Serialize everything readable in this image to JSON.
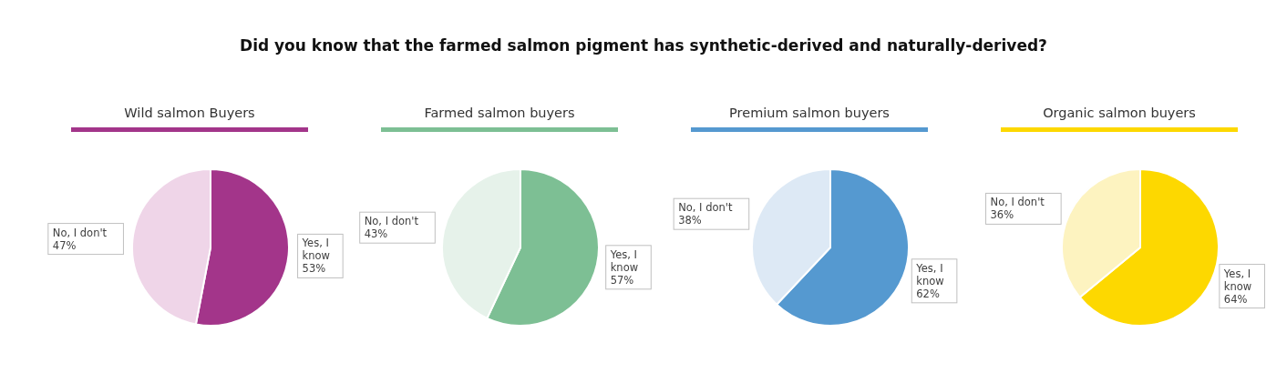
{
  "chart_data": [
    {
      "type": "pie",
      "title": "Did you know that the farmed salmon pigment has synthetic-derived and naturally-derived?",
      "subtitle": "Wild salmon Buyers",
      "categories": [
        "Yes, I know",
        "No, I don't"
      ],
      "values": [
        53,
        47
      ],
      "value_labels": [
        "53%",
        "47%"
      ],
      "colors": [
        "#a3358a",
        "#efd5e8"
      ]
    },
    {
      "type": "pie",
      "subtitle": "Farmed salmon buyers",
      "categories": [
        "Yes, I know",
        "No, I don't"
      ],
      "values": [
        57,
        43
      ],
      "value_labels": [
        "57%",
        "43%"
      ],
      "colors": [
        "#7dbf94",
        "#e6f2ea"
      ]
    },
    {
      "type": "pie",
      "subtitle": "Premium salmon buyers",
      "categories": [
        "Yes, I know",
        "No, I don't"
      ],
      "values": [
        62,
        38
      ],
      "value_labels": [
        "62%",
        "38%"
      ],
      "colors": [
        "#5599d0",
        "#dde9f5"
      ]
    },
    {
      "type": "pie",
      "subtitle": "Organic salmon buyers",
      "categories": [
        "Yes, I know",
        "No, I don't"
      ],
      "values": [
        64,
        36
      ],
      "value_labels": [
        "64%",
        "36%"
      ],
      "colors": [
        "#fdd800",
        "#fdf3c0"
      ]
    }
  ]
}
